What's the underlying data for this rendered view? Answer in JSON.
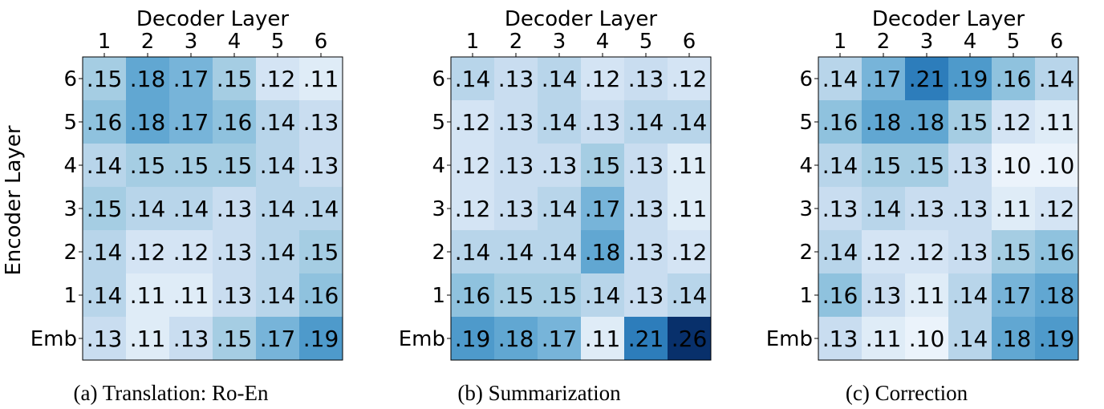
{
  "chart_data": [
    {
      "type": "heatmap",
      "caption": "(a) Translation: Ro-En",
      "xlabel": "Decoder Layer",
      "ylabel": "Encoder Layer",
      "x_ticks": [
        "1",
        "2",
        "3",
        "4",
        "5",
        "6"
      ],
      "y_ticks": [
        "6",
        "5",
        "4",
        "3",
        "2",
        "1",
        "Emb"
      ],
      "values": [
        [
          0.15,
          0.18,
          0.17,
          0.15,
          0.12,
          0.11
        ],
        [
          0.16,
          0.18,
          0.17,
          0.16,
          0.14,
          0.13
        ],
        [
          0.14,
          0.15,
          0.15,
          0.15,
          0.14,
          0.13
        ],
        [
          0.15,
          0.14,
          0.14,
          0.13,
          0.14,
          0.14
        ],
        [
          0.14,
          0.12,
          0.12,
          0.13,
          0.14,
          0.15
        ],
        [
          0.14,
          0.11,
          0.11,
          0.13,
          0.14,
          0.16
        ],
        [
          0.13,
          0.11,
          0.13,
          0.15,
          0.17,
          0.19
        ]
      ],
      "labels": [
        [
          ".15",
          ".18",
          ".17",
          ".15",
          ".12",
          ".11"
        ],
        [
          ".16",
          ".18",
          ".17",
          ".16",
          ".14",
          ".13"
        ],
        [
          ".14",
          ".15",
          ".15",
          ".15",
          ".14",
          ".13"
        ],
        [
          ".15",
          ".14",
          ".14",
          ".13",
          ".14",
          ".14"
        ],
        [
          ".14",
          ".12",
          ".12",
          ".13",
          ".14",
          ".15"
        ],
        [
          ".14",
          ".11",
          ".11",
          ".13",
          ".14",
          ".16"
        ],
        [
          ".13",
          ".11",
          ".13",
          ".15",
          ".17",
          ".19"
        ]
      ],
      "colormap": "Blues"
    },
    {
      "type": "heatmap",
      "caption": "(b) Summarization",
      "xlabel": "Decoder Layer",
      "ylabel": "",
      "x_ticks": [
        "1",
        "2",
        "3",
        "4",
        "5",
        "6"
      ],
      "y_ticks": [
        "6",
        "5",
        "4",
        "3",
        "2",
        "1",
        "Emb"
      ],
      "values": [
        [
          0.14,
          0.13,
          0.14,
          0.12,
          0.13,
          0.12
        ],
        [
          0.12,
          0.13,
          0.14,
          0.13,
          0.14,
          0.14
        ],
        [
          0.12,
          0.13,
          0.13,
          0.15,
          0.13,
          0.11
        ],
        [
          0.12,
          0.13,
          0.14,
          0.17,
          0.13,
          0.11
        ],
        [
          0.14,
          0.14,
          0.14,
          0.18,
          0.13,
          0.12
        ],
        [
          0.16,
          0.15,
          0.15,
          0.14,
          0.13,
          0.14
        ],
        [
          0.19,
          0.18,
          0.17,
          0.11,
          0.21,
          0.26
        ]
      ],
      "labels": [
        [
          ".14",
          ".13",
          ".14",
          ".12",
          ".13",
          ".12"
        ],
        [
          ".12",
          ".13",
          ".14",
          ".13",
          ".14",
          ".14"
        ],
        [
          ".12",
          ".13",
          ".13",
          ".15",
          ".13",
          ".11"
        ],
        [
          ".12",
          ".13",
          ".14",
          ".17",
          ".13",
          ".11"
        ],
        [
          ".14",
          ".14",
          ".14",
          ".18",
          ".13",
          ".12"
        ],
        [
          ".16",
          ".15",
          ".15",
          ".14",
          ".13",
          ".14"
        ],
        [
          ".19",
          ".18",
          ".17",
          ".11",
          ".21",
          ".26"
        ]
      ],
      "colormap": "Blues"
    },
    {
      "type": "heatmap",
      "caption": "(c) Correction",
      "xlabel": "Decoder Layer",
      "ylabel": "",
      "x_ticks": [
        "1",
        "2",
        "3",
        "4",
        "5",
        "6"
      ],
      "y_ticks": [
        "6",
        "5",
        "4",
        "3",
        "2",
        "1",
        "Emb"
      ],
      "values": [
        [
          0.14,
          0.17,
          0.21,
          0.19,
          0.16,
          0.14
        ],
        [
          0.16,
          0.18,
          0.18,
          0.15,
          0.12,
          0.11
        ],
        [
          0.14,
          0.15,
          0.15,
          0.13,
          0.1,
          0.1
        ],
        [
          0.13,
          0.14,
          0.13,
          0.13,
          0.11,
          0.12
        ],
        [
          0.14,
          0.12,
          0.12,
          0.13,
          0.15,
          0.16
        ],
        [
          0.16,
          0.13,
          0.11,
          0.14,
          0.17,
          0.18
        ],
        [
          0.13,
          0.11,
          0.1,
          0.14,
          0.18,
          0.19
        ]
      ],
      "labels": [
        [
          ".14",
          ".17",
          ".21",
          ".19",
          ".16",
          ".14"
        ],
        [
          ".16",
          ".18",
          ".18",
          ".15",
          ".12",
          ".11"
        ],
        [
          ".14",
          ".15",
          ".15",
          ".13",
          ".10",
          ".10"
        ],
        [
          ".13",
          ".14",
          ".13",
          ".13",
          ".11",
          ".12"
        ],
        [
          ".14",
          ".12",
          ".12",
          ".13",
          ".15",
          ".16"
        ],
        [
          ".16",
          ".13",
          ".11",
          ".14",
          ".17",
          ".18"
        ],
        [
          ".13",
          ".11",
          ".10",
          ".14",
          ".18",
          ".19"
        ]
      ],
      "colormap": "Blues"
    }
  ]
}
